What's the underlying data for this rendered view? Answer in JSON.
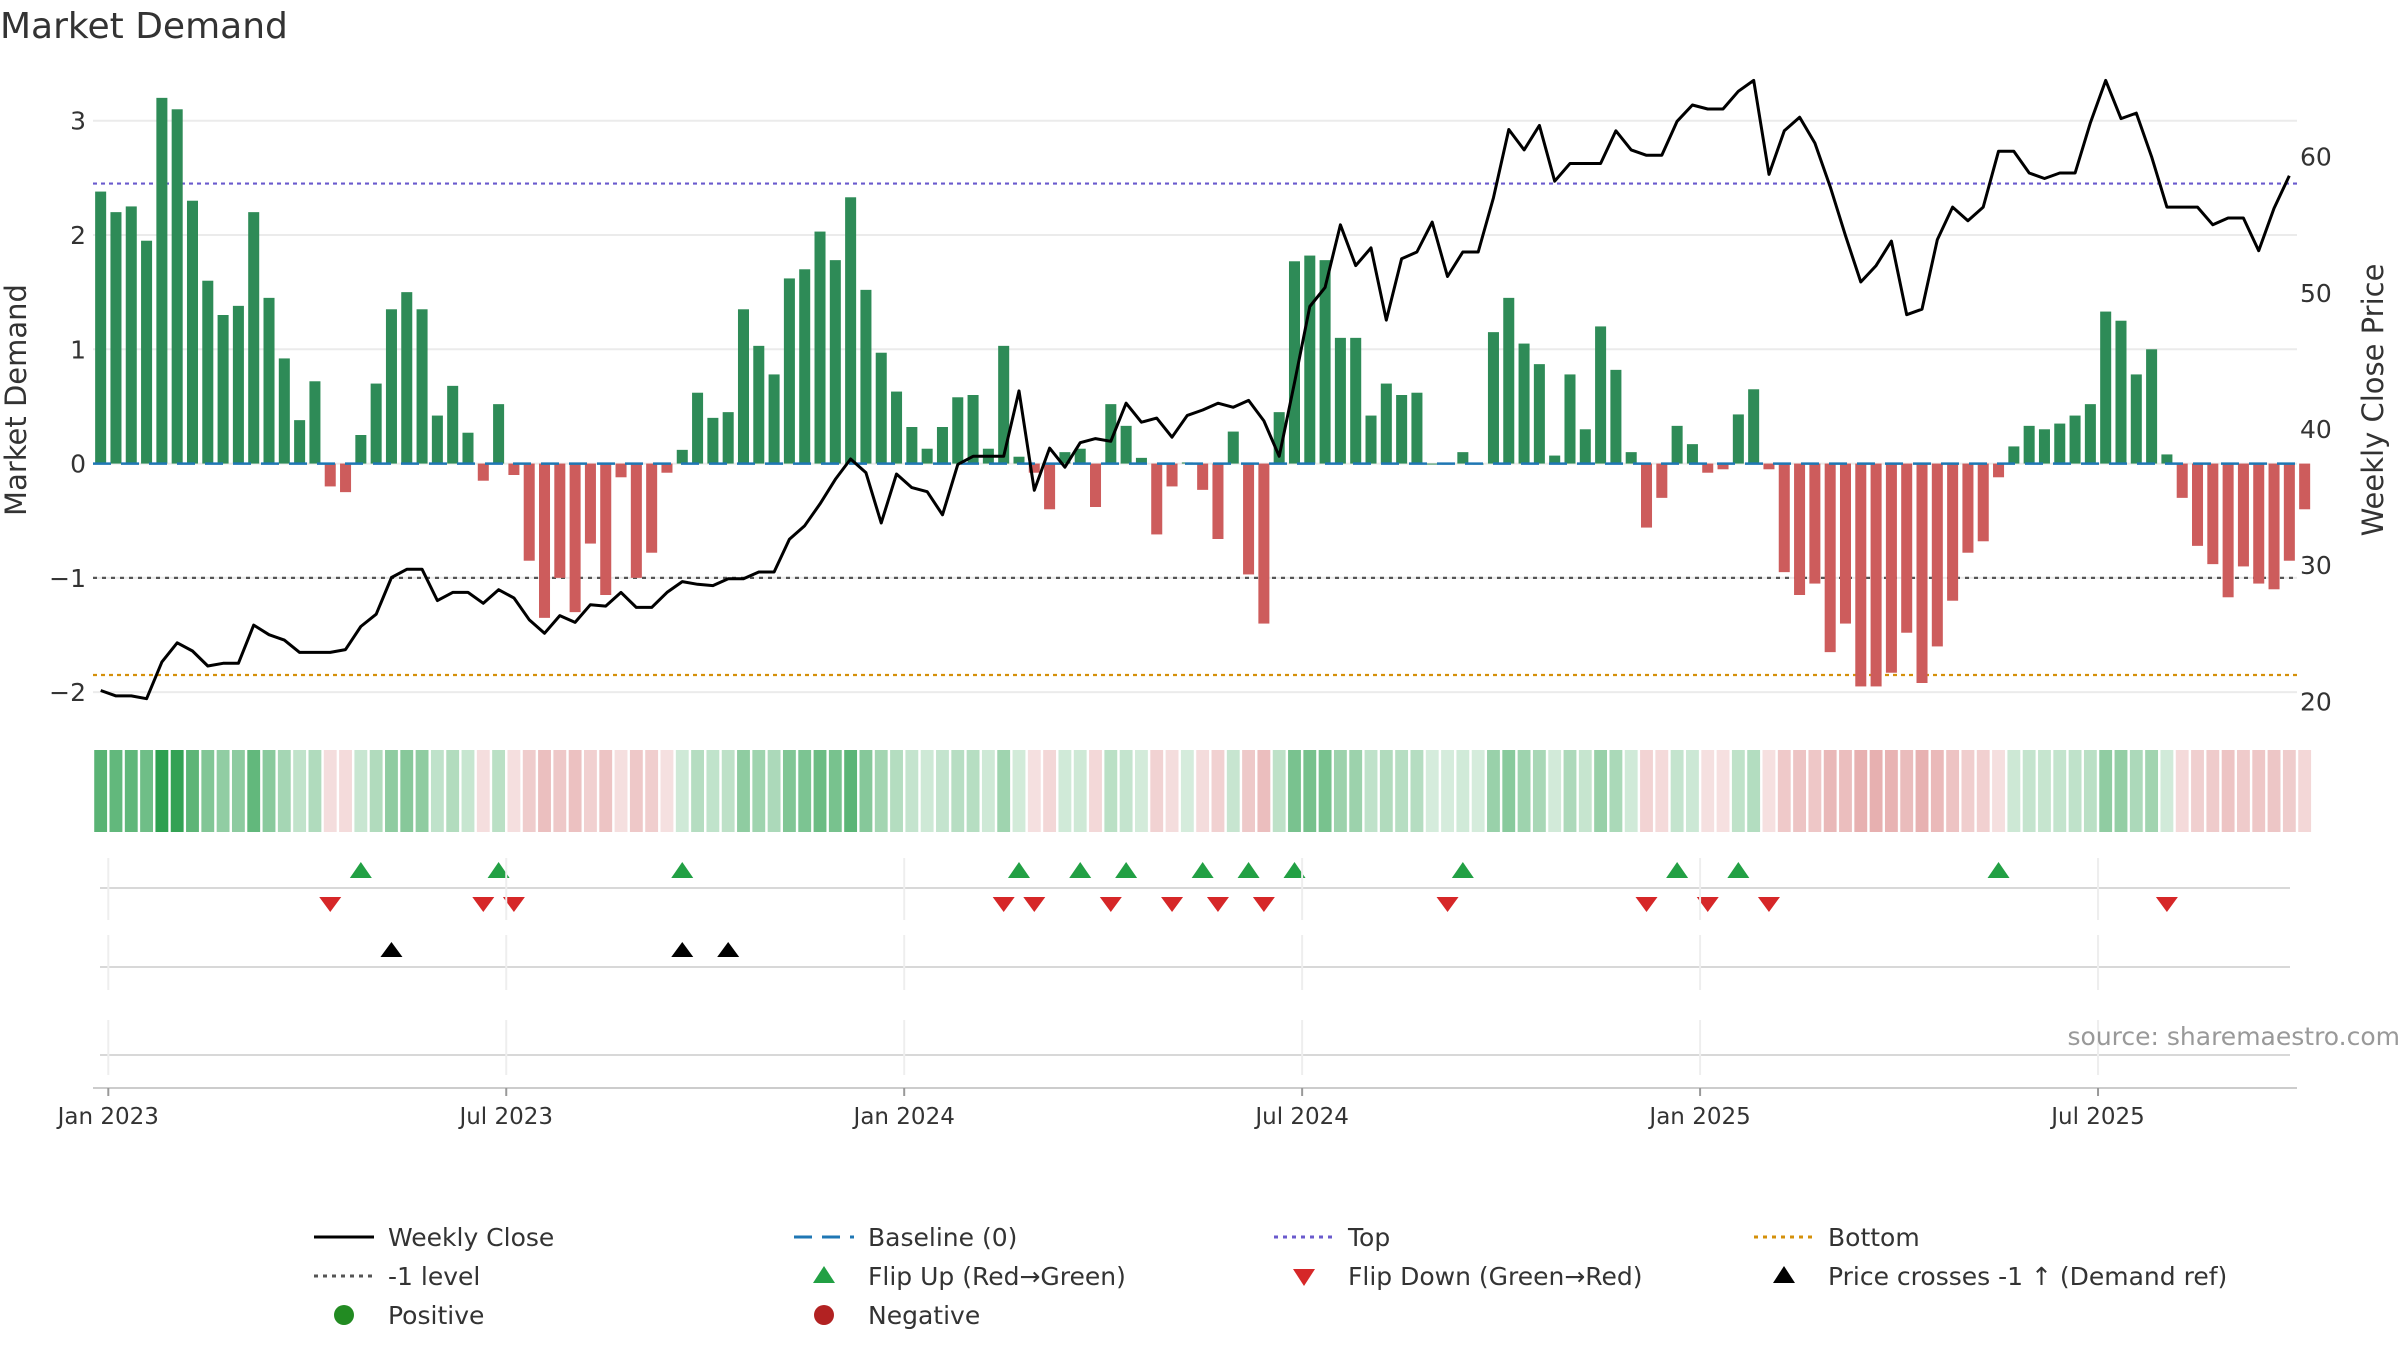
{
  "chart_data": {
    "type": "bar",
    "title": "Market Demand",
    "ylabel_left": "Market Demand",
    "ylabel_right": "Weekly Close Price",
    "ylim_left": [
      -2.2,
      3.4
    ],
    "ylim_right": [
      19,
      66
    ],
    "yticks_left": [
      "3",
      "2",
      "1",
      "0",
      "−1",
      "−2"
    ],
    "yticks_left_values": [
      3,
      2,
      1,
      0,
      -1,
      -2
    ],
    "yticks_right": [
      "60",
      "50",
      "40",
      "30",
      "20"
    ],
    "yticks_right_values": [
      60,
      50,
      40,
      30,
      20
    ],
    "xticks": [
      "Jan 2023",
      "Jul 2023",
      "Jan 2024",
      "Jul 2024",
      "Jan 2025",
      "Jul 2025"
    ],
    "xticks_week_index": [
      1,
      27,
      53,
      79,
      105,
      131
    ],
    "weeks": 144,
    "reference_lines": {
      "baseline": 0,
      "top": 2.45,
      "bottom": -1.85,
      "level": -1
    },
    "series": [
      {
        "name": "Market Demand",
        "values": [
          2.38,
          2.2,
          2.25,
          1.95,
          3.2,
          3.1,
          2.3,
          1.6,
          1.3,
          1.38,
          2.2,
          1.45,
          0.92,
          0.38,
          0.72,
          -0.2,
          -0.25,
          0.25,
          0.7,
          1.35,
          1.5,
          1.35,
          0.42,
          0.68,
          0.27,
          -0.15,
          0.52,
          -0.1,
          -0.85,
          -1.35,
          -1.0,
          -1.3,
          -0.7,
          -1.15,
          -0.12,
          -1.0,
          -0.78,
          -0.08,
          0.12,
          0.62,
          0.4,
          0.45,
          1.35,
          1.03,
          0.78,
          1.62,
          1.7,
          2.03,
          1.78,
          2.33,
          1.52,
          0.97,
          0.63,
          0.32,
          0.13,
          0.32,
          0.58,
          0.6,
          0.13,
          1.03,
          0.06,
          -0.08,
          -0.4,
          0.1,
          0.13,
          -0.38,
          0.52,
          0.33,
          0.05,
          -0.62,
          -0.2,
          0.01,
          -0.23,
          -0.66,
          0.28,
          -0.97,
          -1.4,
          0.45,
          1.77,
          1.82,
          1.78,
          1.1,
          1.1,
          0.42,
          0.7,
          0.6,
          0.62,
          0.0,
          0.0,
          0.1,
          0.0,
          1.15,
          1.45,
          1.05,
          0.87,
          0.07,
          0.78,
          0.3,
          1.2,
          0.82,
          0.1,
          -0.56,
          -0.3,
          0.33,
          0.17,
          -0.08,
          -0.05,
          0.43,
          0.65,
          -0.05,
          -0.95,
          -1.15,
          -1.05,
          -1.65,
          -1.4,
          -1.95,
          -1.95,
          -1.83,
          -1.48,
          -1.92,
          -1.6,
          -1.2,
          -0.78,
          -0.68,
          -0.12,
          0.15,
          0.33,
          0.3,
          0.35,
          0.42,
          0.52,
          1.33,
          1.25,
          0.78,
          1.0,
          0.08,
          -0.3,
          -0.72,
          -0.88,
          -1.17,
          -0.9,
          -1.05,
          -1.1,
          -0.85,
          -0.4
        ]
      },
      {
        "name": "Weekly Close",
        "values": [
          20.8,
          20.4,
          20.4,
          20.2,
          22.9,
          24.3,
          23.7,
          22.6,
          22.8,
          22.8,
          25.6,
          24.9,
          24.5,
          23.6,
          23.6,
          23.6,
          23.8,
          25.5,
          26.4,
          29.1,
          29.7,
          29.7,
          27.4,
          28.0,
          28.0,
          27.2,
          28.2,
          27.6,
          26.0,
          25.0,
          26.3,
          25.8,
          27.1,
          27.0,
          28.0,
          26.9,
          26.9,
          28.0,
          28.8,
          28.6,
          28.5,
          29.0,
          29.0,
          29.5,
          29.5,
          31.9,
          32.9,
          34.5,
          36.3,
          37.8,
          36.8,
          33.1,
          36.7,
          35.7,
          35.4,
          33.7,
          37.4,
          38.0,
          38.0,
          38.0,
          42.8,
          35.5,
          38.6,
          37.2,
          39.0,
          39.3,
          39.1,
          41.9,
          40.5,
          40.8,
          39.4,
          41.0,
          41.4,
          41.9,
          41.6,
          42.1,
          40.6,
          38.0,
          43.4,
          49.0,
          50.4,
          55.0,
          52.0,
          53.3,
          48.0,
          52.5,
          53.0,
          55.2,
          51.2,
          53.0,
          53.0,
          57.0,
          62.0,
          60.5,
          62.3,
          58.2,
          59.5,
          59.5,
          59.5,
          61.9,
          60.5,
          60.1,
          60.1,
          62.6,
          63.8,
          63.5,
          63.5,
          64.8,
          65.6,
          58.7,
          61.9,
          62.9,
          61.0,
          57.8,
          54.2,
          50.8,
          52.0,
          53.8,
          48.4,
          48.8,
          53.9,
          56.3,
          55.3,
          56.3,
          60.4,
          60.4,
          58.8,
          58.4,
          58.8,
          58.8,
          62.5,
          65.6,
          62.8,
          63.2,
          60.0,
          56.3,
          56.3,
          56.3,
          55.0,
          55.5,
          55.5,
          53.1,
          56.2,
          58.6
        ]
      }
    ],
    "heat_band": {
      "description": "weekly demand strength",
      "values": [
        2.38,
        2.2,
        2.25,
        1.95,
        3.2,
        3.1,
        2.3,
        1.6,
        1.3,
        1.38,
        2.2,
        1.45,
        0.92,
        0.38,
        0.72,
        -0.2,
        -0.25,
        0.25,
        0.7,
        1.35,
        1.5,
        1.35,
        0.42,
        0.68,
        0.27,
        -0.15,
        0.52,
        -0.1,
        -0.85,
        -1.35,
        -1.0,
        -1.3,
        -0.7,
        -1.15,
        -0.12,
        -1.0,
        -0.78,
        -0.08,
        0.12,
        0.62,
        0.4,
        0.45,
        1.35,
        1.03,
        0.78,
        1.62,
        1.7,
        2.03,
        1.78,
        2.33,
        1.52,
        0.97,
        0.63,
        0.32,
        0.13,
        0.32,
        0.58,
        0.6,
        0.13,
        1.03,
        0.06,
        -0.08,
        -0.4,
        0.1,
        0.13,
        -0.38,
        0.52,
        0.33,
        0.05,
        -0.62,
        -0.2,
        0.01,
        -0.23,
        -0.66,
        0.28,
        -0.97,
        -1.4,
        0.45,
        1.77,
        1.82,
        1.78,
        1.1,
        1.1,
        0.42,
        0.7,
        0.6,
        0.62,
        0.0,
        0.0,
        0.1,
        0.0,
        1.15,
        1.45,
        1.05,
        0.87,
        0.07,
        0.78,
        0.3,
        1.2,
        0.82,
        0.1,
        -0.56,
        -0.3,
        0.33,
        0.17,
        -0.08,
        -0.05,
        0.43,
        0.65,
        -0.05,
        -0.95,
        -1.15,
        -1.05,
        -1.65,
        -1.4,
        -1.95,
        -1.95,
        -1.83,
        -1.48,
        -1.92,
        -1.6,
        -1.2,
        -0.78,
        -0.68,
        -0.12,
        0.15,
        0.33,
        0.3,
        0.35,
        0.42,
        0.52,
        1.33,
        1.25,
        0.78,
        1.0,
        0.08,
        -0.3,
        -0.72,
        -0.88,
        -1.17,
        -0.9,
        -1.05,
        -1.1,
        -0.85,
        -0.4
      ]
    },
    "flip_up_weeks": [
      17,
      26,
      38,
      60,
      64,
      67,
      72,
      75,
      78,
      89,
      103,
      107,
      124
    ],
    "flip_down_weeks": [
      15,
      25,
      27,
      59,
      61,
      66,
      70,
      73,
      76,
      88,
      101,
      105,
      109,
      135
    ],
    "price_cross_weeks": [
      19,
      38,
      41
    ]
  },
  "source": "source: sharemaestro.com",
  "legend": {
    "weekly_close": "Weekly Close",
    "baseline": "Baseline (0)",
    "top": "Top",
    "bottom": "Bottom",
    "level": "-1 level",
    "flip_up": "Flip Up (Red→Green)",
    "flip_down": "Flip Down (Green→Red)",
    "price_cross": "Price crosses -1 ↑ (Demand ref)",
    "positive": "Positive",
    "negative": "Negative"
  },
  "colors": {
    "positive_bar": "#2e8b57",
    "negative_bar": "#cd5c5c",
    "price_line": "#000000",
    "baseline": "#1f77b4",
    "top": "#6a5acd",
    "bottom": "#d4900a",
    "level": "#555555",
    "flip_up": "#22a044",
    "flip_down": "#d62728",
    "price_cross": "#000000",
    "positive_dot": "#228b22",
    "negative_dot": "#b22222"
  }
}
